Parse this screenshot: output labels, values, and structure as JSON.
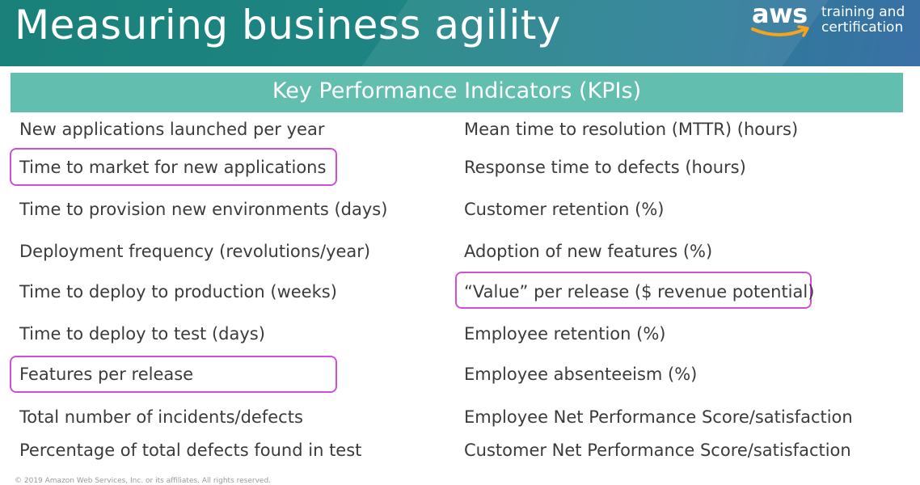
{
  "header": {
    "title": "Measuring business agility",
    "logo_word": "aws",
    "tagline_line1": "training and",
    "tagline_line2": "certification"
  },
  "section_title": "Key Performance Indicators (KPIs)",
  "left_column": [
    {
      "label": "New applications launched per year",
      "highlighted": false
    },
    {
      "label": "Time to market for new applications",
      "highlighted": true
    },
    {
      "label": "Time to provision new environments (days)",
      "highlighted": false
    },
    {
      "label": "Deployment frequency (revolutions/year)",
      "highlighted": false
    },
    {
      "label": "Time to deploy to production (weeks)",
      "highlighted": false
    },
    {
      "label": "Time to deploy to test (days)",
      "highlighted": false
    },
    {
      "label": "Features per release",
      "highlighted": true
    },
    {
      "label": "Total number of incidents/defects",
      "highlighted": false
    },
    {
      "label": "Percentage of total defects found in test",
      "highlighted": false
    }
  ],
  "right_column": [
    {
      "label": "Mean time to resolution (MTTR) (hours)",
      "highlighted": false
    },
    {
      "label": "Response time to defects (hours)",
      "highlighted": false
    },
    {
      "label": "Customer retention (%)",
      "highlighted": false
    },
    {
      "label": "Adoption of new features (%)",
      "highlighted": false
    },
    {
      "label": "“Value” per release ($ revenue potential)",
      "highlighted": true
    },
    {
      "label": "Employee retention (%)",
      "highlighted": false
    },
    {
      "label": "Employee absenteeism (%)",
      "highlighted": false
    },
    {
      "label": "Employee Net Performance Score/satisfaction",
      "highlighted": false
    },
    {
      "label": "Customer Net Performance Score/satisfaction",
      "highlighted": false
    }
  ],
  "footer": "© 2019 Amazon Web Services, Inc. or its affiliates. All rights reserved.",
  "colors": {
    "header_teal": "#1f8584",
    "header_blue": "#3a70a6",
    "band_teal": "#62bfb0",
    "highlight_magenta": "#d04fd9",
    "aws_orange": "#f7a41d"
  }
}
